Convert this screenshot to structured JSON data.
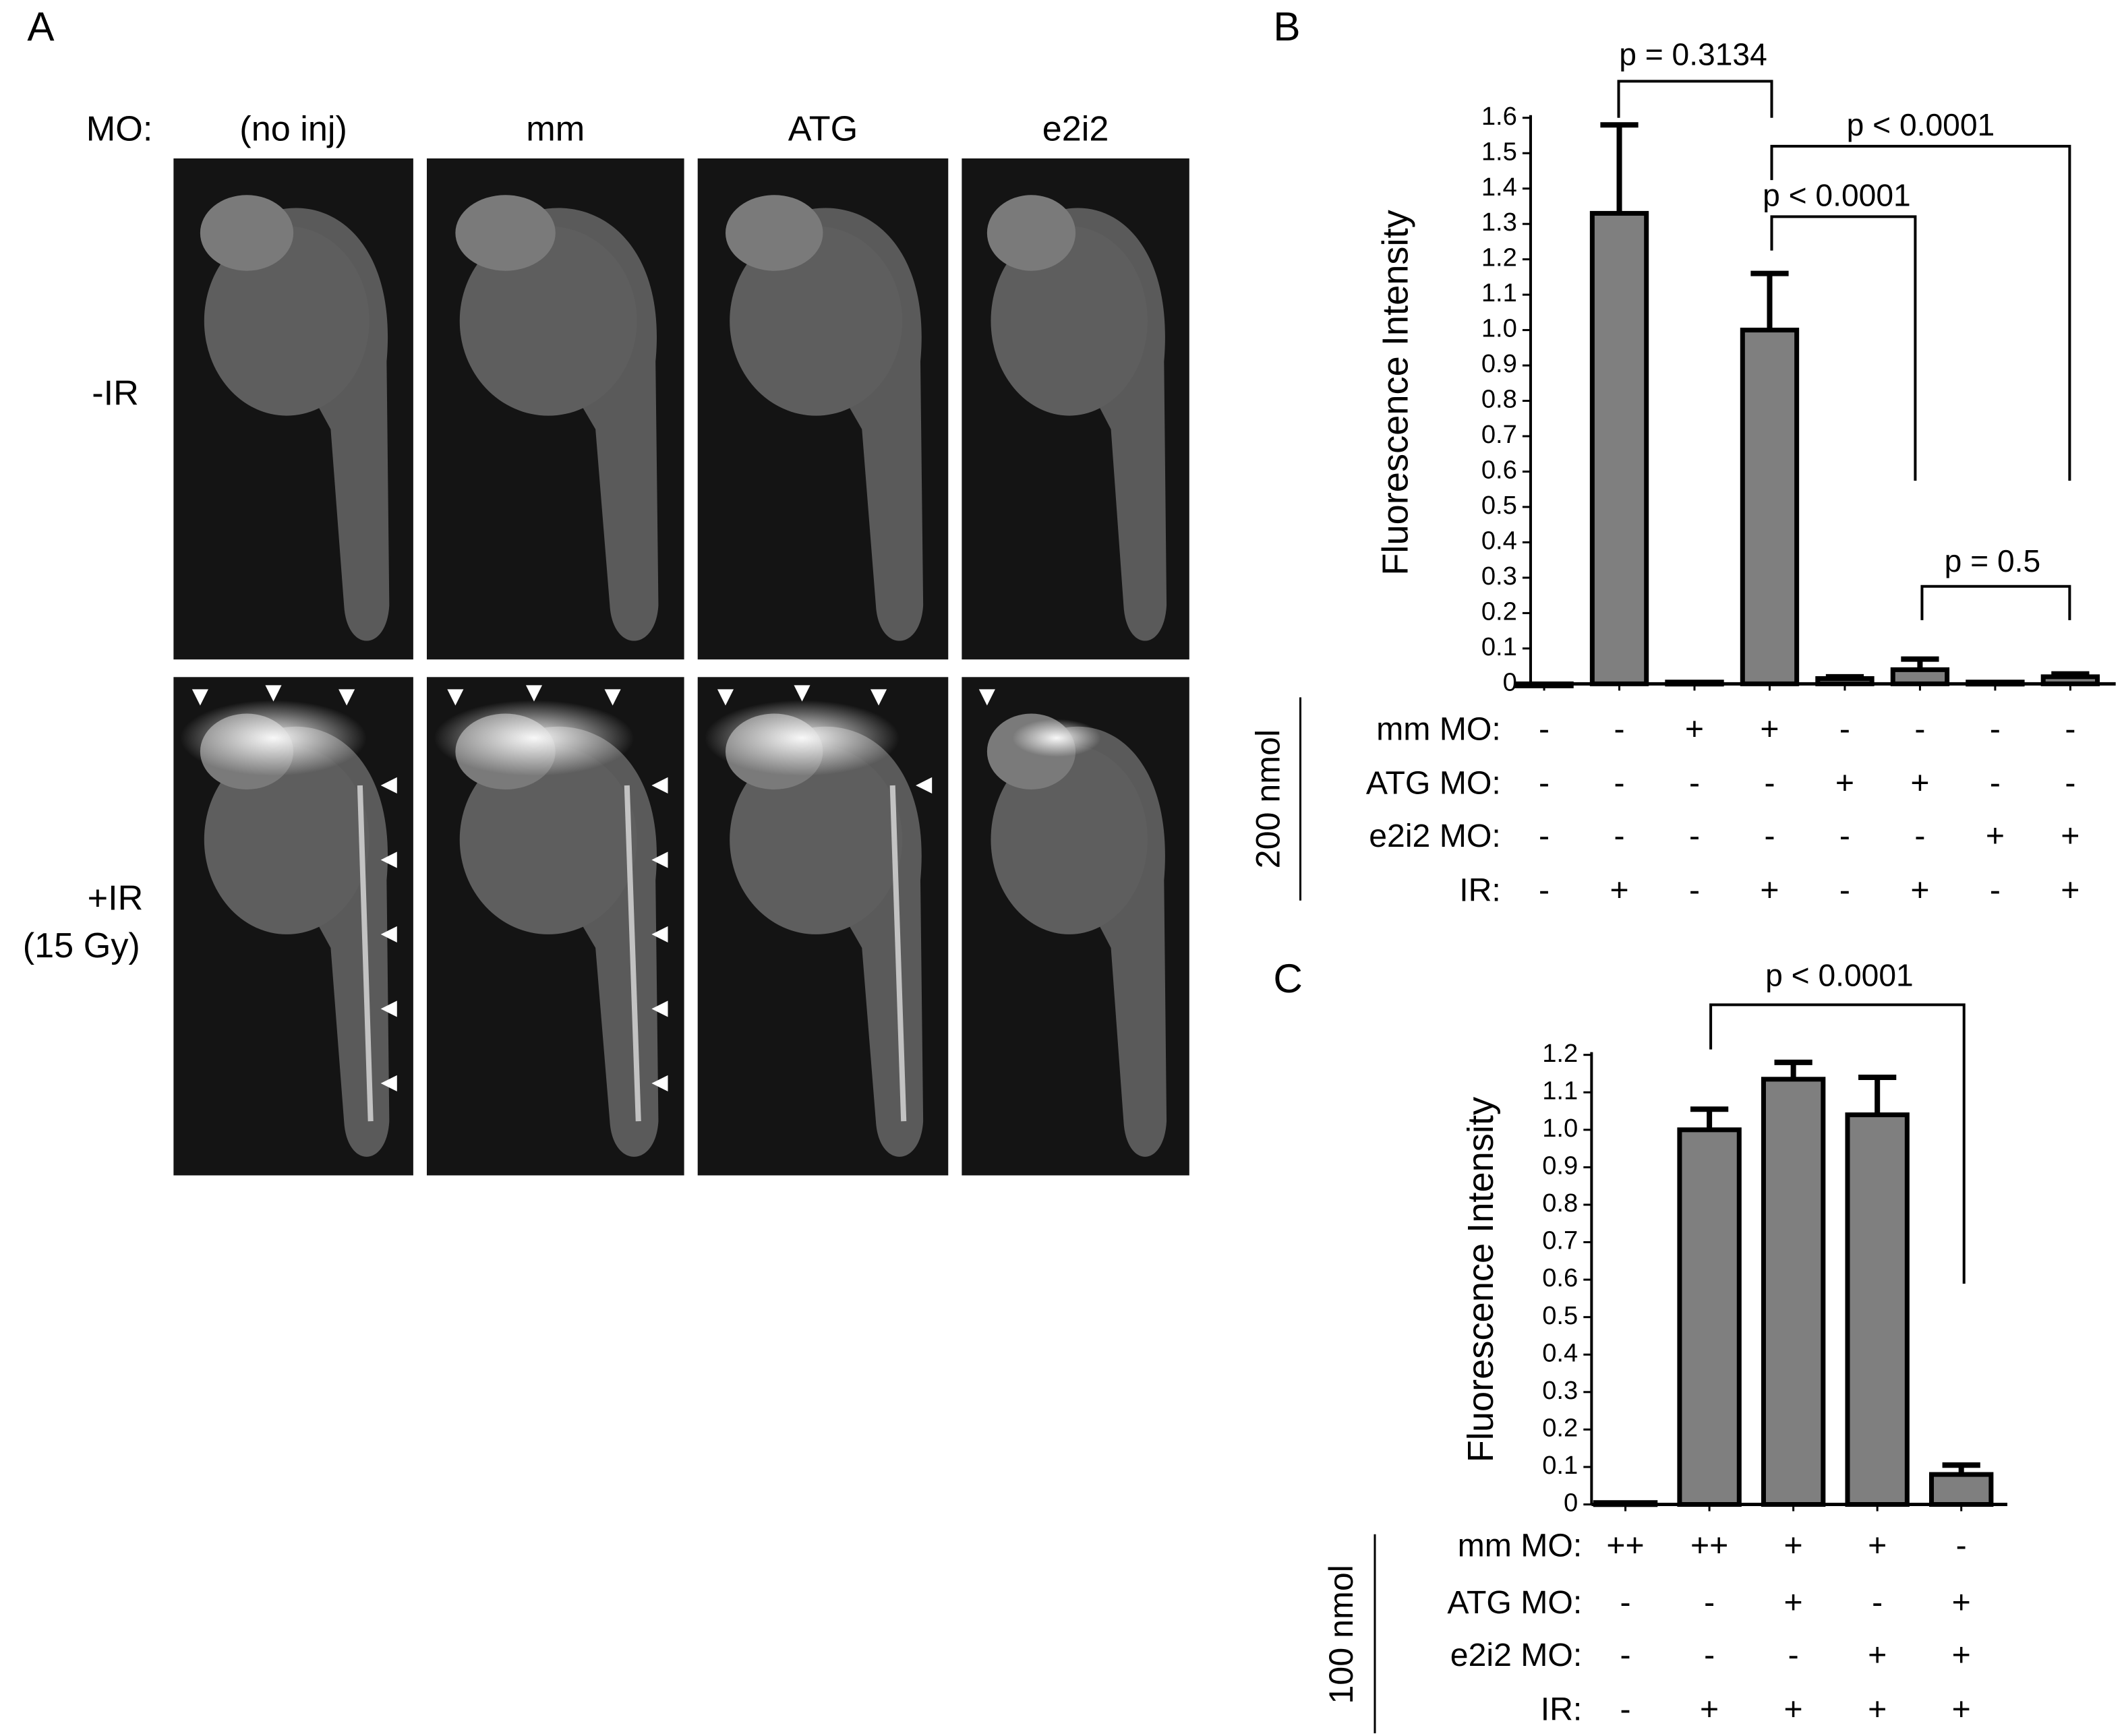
{
  "panel_a": {
    "label": "A",
    "row_header": "MO:",
    "columns": [
      "(no inj)",
      "mm",
      "ATG",
      "e2i2"
    ],
    "rows": [
      [
        "-IR"
      ],
      [
        "+IR",
        "(15 Gy)"
      ]
    ]
  },
  "chart_data": [
    {
      "type": "bar",
      "panel": "B",
      "y_label": "Fluorescence Intensity",
      "color": "#7f7f7f",
      "values": [
        0,
        1.33,
        0.005,
        1.0,
        0.015,
        0.04,
        0.005,
        0.02
      ],
      "errors": [
        0,
        0.25,
        0,
        0.16,
        0.005,
        0.03,
        0,
        0.008
      ],
      "ylim": [
        0,
        1.6
      ],
      "yticks": [
        0,
        0.1,
        0.2,
        0.3,
        0.4,
        0.5,
        0.6,
        0.7,
        0.8,
        0.9,
        {
          "value": 1,
          "label": "1.0"
        },
        1.1,
        1.2,
        1.3,
        1.4,
        1.5,
        1.6
      ],
      "annotations": [
        "p = 0.3134",
        "p < 0.0001",
        "p < 0.0001",
        "p = 0.5"
      ],
      "dose": "200 nmol",
      "conditions": [
        {
          "label": "mm MO:",
          "marks": [
            "-",
            "-",
            "+",
            "+",
            "-",
            "-",
            "-",
            "-"
          ]
        },
        {
          "label": "ATG MO:",
          "marks": [
            "-",
            "-",
            "-",
            "-",
            "+",
            "+",
            "-",
            "-"
          ]
        },
        {
          "label": "e2i2 MO:",
          "marks": [
            "-",
            "-",
            "-",
            "-",
            "-",
            "-",
            "+",
            "+"
          ]
        },
        {
          "label": "IR:",
          "marks": [
            "-",
            "+",
            "-",
            "+",
            "-",
            "+",
            "-",
            "+"
          ]
        }
      ]
    },
    {
      "type": "bar",
      "panel": "C",
      "y_label": "Fluorescence Intensity",
      "color": "#7f7f7f",
      "values": [
        0.005,
        1.0,
        1.135,
        1.04,
        0.08
      ],
      "errors": [
        0,
        0.055,
        0.045,
        0.1,
        0.025
      ],
      "ylim": [
        0,
        1.2
      ],
      "yticks": [
        0,
        0.1,
        0.2,
        0.3,
        0.4,
        0.5,
        0.6,
        0.7,
        0.8,
        0.9,
        {
          "value": 1,
          "label": "1.0"
        },
        1.1,
        1.2
      ],
      "annotations": [
        "p < 0.0001"
      ],
      "dose": "100 nmol",
      "conditions": [
        {
          "label": "mm MO:",
          "marks": [
            "++",
            "++",
            "+",
            "+",
            "-"
          ]
        },
        {
          "label": "ATG MO:",
          "marks": [
            "-",
            "-",
            "+",
            "-",
            "+"
          ]
        },
        {
          "label": "e2i2 MO:",
          "marks": [
            "-",
            "-",
            "-",
            "+",
            "+"
          ]
        },
        {
          "label": "IR:",
          "marks": [
            "-",
            "+",
            "+",
            "+",
            "+"
          ]
        }
      ]
    }
  ]
}
